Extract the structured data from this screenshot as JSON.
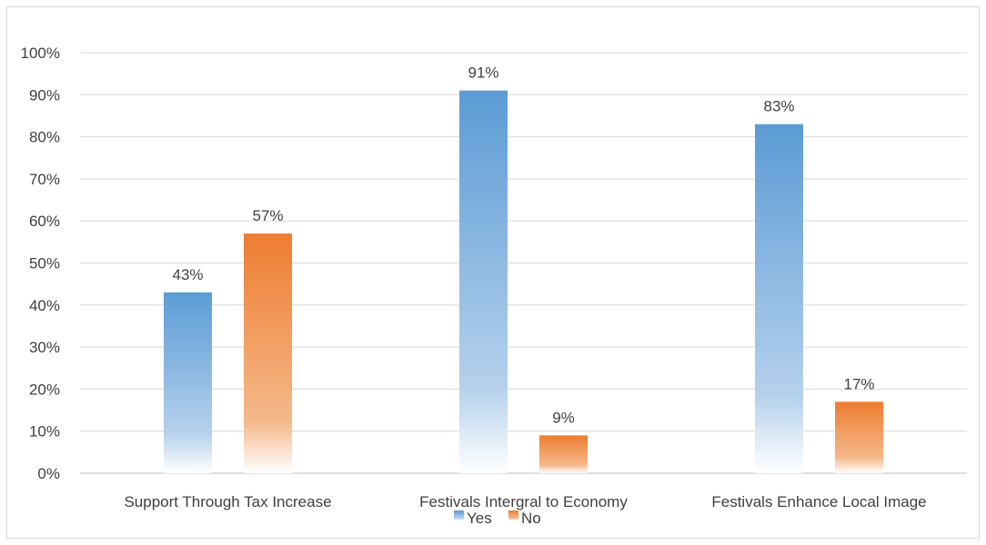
{
  "chart_data": {
    "type": "bar",
    "title": "",
    "xlabel": "",
    "ylabel": "",
    "categories": [
      "Support Through Tax Increase",
      "Festivals Intergral to Economy",
      "Festivals Enhance Local Image"
    ],
    "series": [
      {
        "name": "Yes",
        "values": [
          43,
          91,
          83
        ],
        "color": "#5b9bd5"
      },
      {
        "name": "No",
        "values": [
          57,
          9,
          17
        ],
        "color": "#ed7d31"
      }
    ],
    "data_labels": [
      [
        "43%",
        "91%",
        "83%"
      ],
      [
        "57%",
        "9%",
        "17%"
      ]
    ],
    "ylim": [
      0,
      100
    ],
    "y_ticks": [
      "0%",
      "10%",
      "20%",
      "30%",
      "40%",
      "50%",
      "60%",
      "70%",
      "80%",
      "90%",
      "100%"
    ],
    "grid": true,
    "legend": "bottom",
    "bar_fill": "gradient"
  }
}
